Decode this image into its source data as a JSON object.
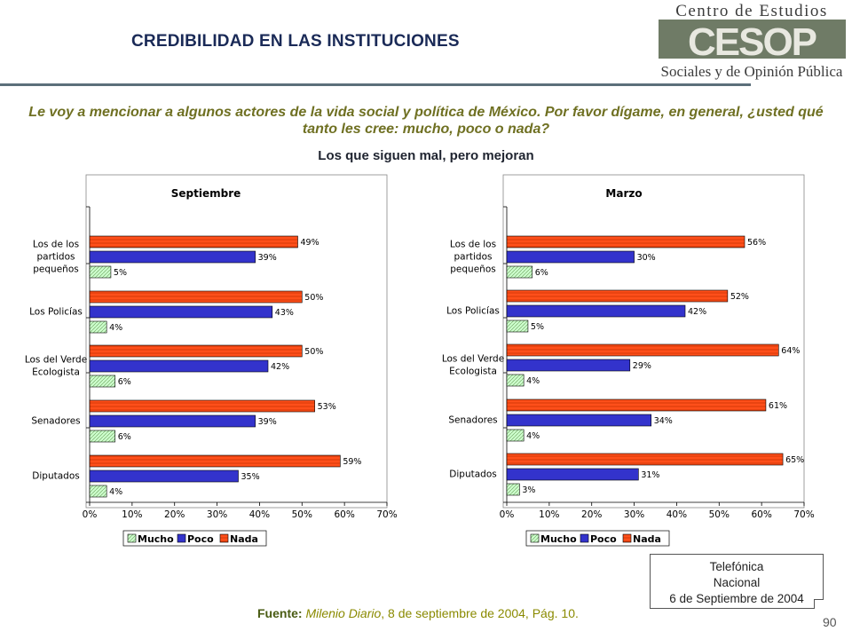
{
  "header": {
    "title": "CREDIBILIDAD EN LAS INSTITUCIONES",
    "logo_top": "Centro de Estudios",
    "logo_mark": "CESOP",
    "logo_bottom": "Sociales y de Opinión Pública"
  },
  "question": "Le voy a mencionar a algunos actores de la vida social y política de México. Por favor dígame, en general, ¿usted qué tanto les cree: mucho, poco o nada?",
  "subtitle": "Los que siguen mal, pero mejoran",
  "colors": {
    "mucho": "#ccffcc",
    "poco": "#3333cc",
    "nada": "#ff4f1a"
  },
  "chart_data": [
    {
      "type": "bar",
      "orientation": "horizontal",
      "title": "Septiembre",
      "categories": [
        "Los de los partidos pequeños",
        "Los Policías",
        "Los del Verde Ecologista",
        "Senadores",
        "Diputados"
      ],
      "category_lines": [
        [
          "Los de los",
          "partidos",
          "pequeños"
        ],
        [
          "Los Policías"
        ],
        [
          "Los del Verde",
          "Ecologista"
        ],
        [
          "Senadores"
        ],
        [
          "Diputados"
        ]
      ],
      "series": [
        {
          "name": "Nada",
          "values": [
            49,
            50,
            50,
            53,
            59
          ],
          "labels": [
            "49%",
            "50%",
            "50%",
            "53%",
            "59%"
          ]
        },
        {
          "name": "Poco",
          "values": [
            39,
            43,
            42,
            39,
            35
          ],
          "labels": [
            "39%",
            "43%",
            "42%",
            "39%",
            "35%"
          ]
        },
        {
          "name": "Mucho",
          "values": [
            5,
            4,
            6,
            6,
            4
          ],
          "labels": [
            "5%",
            "4%",
            "6%",
            "6%",
            "4%"
          ]
        }
      ],
      "xlim": [
        0,
        70
      ],
      "xticks": [
        "0%",
        "10%",
        "20%",
        "30%",
        "40%",
        "50%",
        "60%",
        "70%"
      ],
      "legend": [
        "Mucho",
        "Poco",
        "Nada"
      ],
      "legend_position": "bottom"
    },
    {
      "type": "bar",
      "orientation": "horizontal",
      "title": "Marzo",
      "categories": [
        "Los de los partidos pequeños",
        "Los Policías",
        "Los del Verde Ecologista",
        "Senadores",
        "Diputados"
      ],
      "category_lines": [
        [
          "Los de los",
          "partidos",
          "pequeños"
        ],
        [
          "Los Policías"
        ],
        [
          "Los del Verde",
          "Ecologista"
        ],
        [
          "Senadores"
        ],
        [
          "Diputados"
        ]
      ],
      "series": [
        {
          "name": "Nada",
          "values": [
            56,
            52,
            64,
            61,
            65
          ],
          "labels": [
            "56%",
            "52%",
            "64%",
            "61%",
            "65%"
          ]
        },
        {
          "name": "Poco",
          "values": [
            30,
            42,
            29,
            34,
            31
          ],
          "labels": [
            "30%",
            "42%",
            "29%",
            "34%",
            "31%"
          ]
        },
        {
          "name": "Mucho",
          "values": [
            6,
            5,
            4,
            4,
            3
          ],
          "labels": [
            "6%",
            "5%",
            "4%",
            "4%",
            "3%"
          ]
        }
      ],
      "xlim": [
        0,
        70
      ],
      "xticks": [
        "0%",
        "10%",
        "20%",
        "30%",
        "40%",
        "50%",
        "60%",
        "70%"
      ],
      "legend": [
        "Mucho",
        "Poco",
        "Nada"
      ],
      "legend_position": "bottom"
    }
  ],
  "source": {
    "label": "Fuente:",
    "publication": "Milenio Diario",
    "rest": ", 8 de septiembre de 2004, Pág. 10."
  },
  "note": {
    "line1": "Telefónica",
    "line2": "Nacional",
    "line3": "6 de Septiembre de 2004"
  },
  "page_number": "90"
}
